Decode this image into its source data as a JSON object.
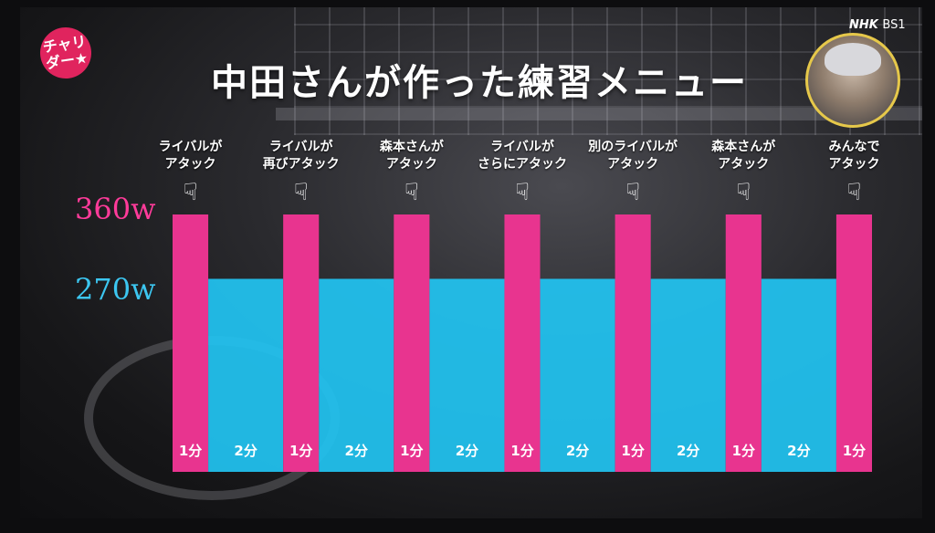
{
  "title": "中田さんが作った練習メニュー",
  "logo_text": "チャリダー★",
  "channel": {
    "name": "NHK",
    "sub": "BS1"
  },
  "chart_data": {
    "type": "bar",
    "ytick_labels": {
      "high": "360w",
      "low": "270w"
    },
    "colors": {
      "high": "#e8348f",
      "low": "#22c4f2"
    },
    "segments": [
      {
        "value": 360,
        "duration": "1分",
        "note": "ライバルが\nアタック"
      },
      {
        "value": 270,
        "duration": "2分",
        "note": ""
      },
      {
        "value": 360,
        "duration": "1分",
        "note": "ライバルが\n再びアタック"
      },
      {
        "value": 270,
        "duration": "2分",
        "note": ""
      },
      {
        "value": 360,
        "duration": "1分",
        "note": "森本さんが\nアタック"
      },
      {
        "value": 270,
        "duration": "2分",
        "note": ""
      },
      {
        "value": 360,
        "duration": "1分",
        "note": "ライバルが\nさらにアタック"
      },
      {
        "value": 270,
        "duration": "2分",
        "note": ""
      },
      {
        "value": 360,
        "duration": "1分",
        "note": "別のライバルが\nアタック"
      },
      {
        "value": 270,
        "duration": "2分",
        "note": ""
      },
      {
        "value": 360,
        "duration": "1分",
        "note": "森本さんが\nアタック"
      },
      {
        "value": 270,
        "duration": "2分",
        "note": ""
      },
      {
        "value": 360,
        "duration": "1分",
        "note": "みんなで\nアタック"
      }
    ]
  }
}
